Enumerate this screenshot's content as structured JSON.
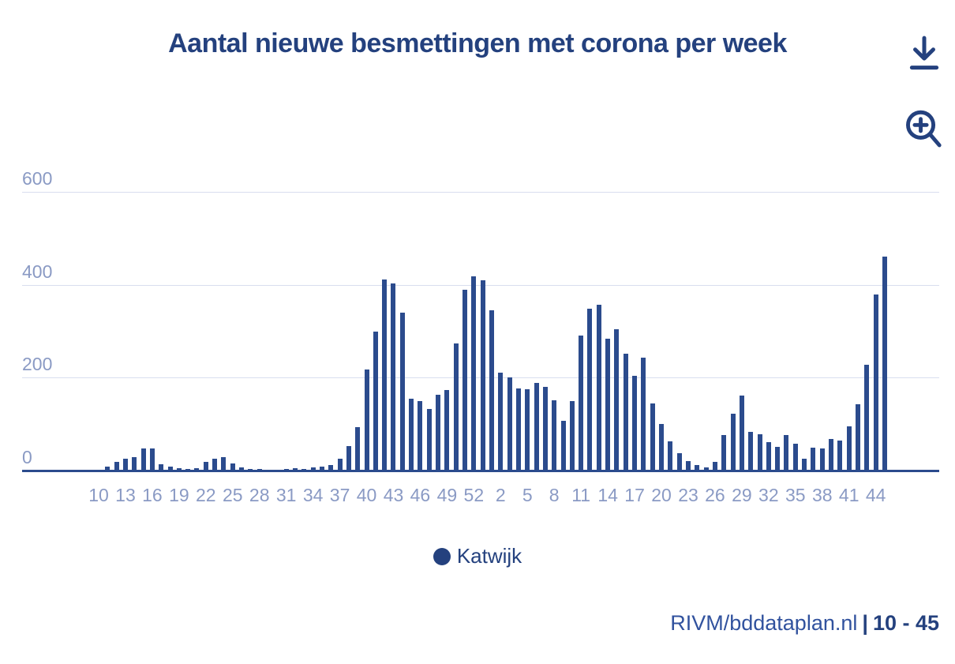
{
  "title": "Aantal nieuwe besmettingen met corona per week",
  "toolbar": {
    "download_icon": "download-icon",
    "zoom_in_icon": "zoom-in-icon"
  },
  "legend": {
    "label": "Katwijk",
    "marker_color": "#24417E"
  },
  "footer": {
    "source": "RIVM/bddataplan.nl",
    "separator": "|",
    "range": "10 - 45"
  },
  "colors": {
    "bar": "#2B4B8D",
    "title": "#24417E",
    "tick_label": "#8A9AC4",
    "gridline": "#D9DEEF",
    "axis_line": "#2B4B8D"
  },
  "chart_data": {
    "type": "bar",
    "title": "Aantal nieuwe besmettingen met corona per week",
    "xlabel": "week",
    "ylabel": "",
    "y_ticks": [
      0,
      200,
      400,
      600
    ],
    "ylim": [
      0,
      680
    ],
    "grid": true,
    "legend_position": "bottom-center",
    "legend": [
      "Katwijk"
    ],
    "bar_color": "#2B4B8D",
    "x_tick_labels": [
      "10",
      "13",
      "16",
      "19",
      "22",
      "25",
      "28",
      "31",
      "34",
      "37",
      "40",
      "43",
      "46",
      "49",
      "52",
      "2",
      "5",
      "8",
      "11",
      "14",
      "17",
      "20",
      "23",
      "26",
      "29",
      "32",
      "35",
      "38",
      "41",
      "44"
    ],
    "categories": [
      "10",
      "11",
      "12",
      "13",
      "14",
      "15",
      "16",
      "17",
      "18",
      "19",
      "20",
      "21",
      "22",
      "23",
      "24",
      "25",
      "26",
      "27",
      "28",
      "29",
      "30",
      "31",
      "32",
      "33",
      "34",
      "35",
      "36",
      "37",
      "38",
      "39",
      "40",
      "41",
      "42",
      "43",
      "44",
      "45",
      "46",
      "47",
      "48",
      "49",
      "50",
      "51",
      "52",
      "53",
      "1",
      "2",
      "3",
      "4",
      "5",
      "6",
      "7",
      "8",
      "9",
      "10",
      "11",
      "12",
      "13",
      "14",
      "15",
      "16",
      "17",
      "18",
      "19",
      "20",
      "21",
      "22",
      "23",
      "24",
      "25",
      "26",
      "27",
      "28",
      "29",
      "30",
      "31",
      "32",
      "33",
      "34",
      "35",
      "36",
      "37",
      "38",
      "39",
      "40",
      "41",
      "42",
      "43",
      "44",
      "45"
    ],
    "series": [
      {
        "name": "Katwijk",
        "values": [
          2,
          8,
          19,
          25,
          29,
          48,
          47,
          13,
          9,
          5,
          3,
          5,
          18,
          25,
          29,
          16,
          6,
          4,
          3,
          2,
          2,
          3,
          5,
          3,
          6,
          8,
          12,
          26,
          52,
          94,
          218,
          300,
          412,
          403,
          340,
          155,
          150,
          132,
          164,
          174,
          274,
          389,
          418,
          409,
          345,
          210,
          201,
          176,
          175,
          188,
          180,
          151,
          107,
          149,
          290,
          348,
          357,
          284,
          305,
          252,
          204,
          243,
          144,
          100,
          63,
          37,
          21,
          12,
          6,
          18,
          76,
          122,
          162,
          84,
          78,
          62,
          51,
          77,
          57,
          26,
          50,
          48,
          68,
          64,
          95,
          142,
          228,
          379,
          460
        ]
      }
    ]
  }
}
